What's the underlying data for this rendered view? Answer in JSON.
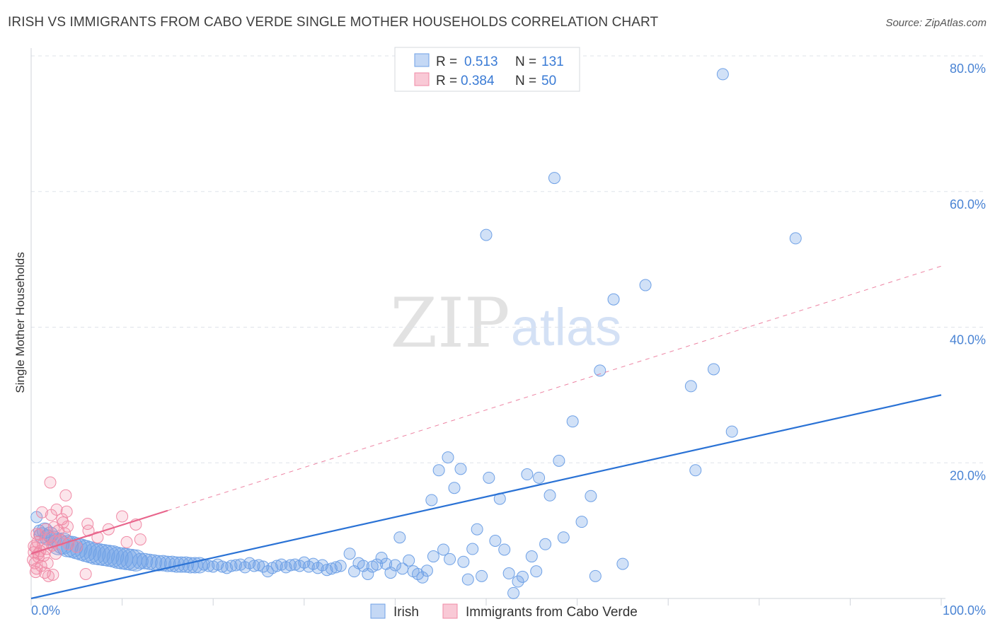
{
  "header": {
    "title": "IRISH VS IMMIGRANTS FROM CABO VERDE SINGLE MOTHER HOUSEHOLDS CORRELATION CHART",
    "source": "Source: ZipAtlas.com"
  },
  "watermark": {
    "zip": "ZIP",
    "atlas": "atlas"
  },
  "colors": {
    "irish": "#6fa1e6",
    "irish_line": "#2a72d5",
    "cabo": "#f08aa6",
    "cabo_line": "#e8658c",
    "tick_label": "#4a84d4",
    "grid": "#dfe3ea"
  },
  "chart_data": {
    "type": "scatter",
    "title": "IRISH VS IMMIGRANTS FROM CABO VERDE SINGLE MOTHER HOUSEHOLDS CORRELATION CHART",
    "ylabel": "Single Mother Households",
    "xlabel": "",
    "xlim": [
      0,
      100
    ],
    "ylim": [
      0,
      80
    ],
    "y_ticks": [
      20,
      40,
      60,
      80
    ],
    "y_tick_labels": [
      "20.0%",
      "40.0%",
      "60.0%",
      "80.0%"
    ],
    "x_tick_labels": [
      "0.0%",
      "100.0%"
    ],
    "grid": true,
    "legend_top": [
      {
        "series": "Irish",
        "r_label": "R = ",
        "r_value": "0.513",
        "n_label": "N = ",
        "n_value": "131"
      },
      {
        "series": "Immigrants from Cabo Verde",
        "r_label": "R = ",
        "r_value": "0.384",
        "n_label": "N = ",
        "n_value": "50"
      }
    ],
    "legend_bottom": [
      "Irish",
      "Immigrants from Cabo Verde"
    ],
    "series": [
      {
        "name": "Irish",
        "trend": {
          "x0": 0,
          "y0": 0.0,
          "x1": 100,
          "y1": 30.0,
          "style": "solid"
        },
        "points": [
          [
            0.6,
            12.0,
            1
          ],
          [
            0.9,
            10.0,
            1
          ],
          [
            1.2,
            9.3,
            2
          ],
          [
            1.5,
            10.0,
            2
          ],
          [
            1.8,
            9.0,
            2
          ],
          [
            2.1,
            9.4,
            2
          ],
          [
            2.5,
            8.8,
            2
          ],
          [
            3.0,
            8.0,
            3
          ],
          [
            3.5,
            8.1,
            3
          ],
          [
            4.0,
            7.7,
            3
          ],
          [
            4.5,
            7.6,
            3
          ],
          [
            5.0,
            7.4,
            3
          ],
          [
            5.5,
            7.2,
            3
          ],
          [
            6.0,
            7.0,
            3
          ],
          [
            6.5,
            6.8,
            3
          ],
          [
            7.0,
            6.6,
            3
          ],
          [
            7.5,
            6.5,
            3
          ],
          [
            8.0,
            6.4,
            3
          ],
          [
            8.5,
            6.3,
            3
          ],
          [
            9.0,
            6.2,
            3
          ],
          [
            9.5,
            6.0,
            3
          ],
          [
            10.0,
            5.9,
            3
          ],
          [
            10.5,
            5.8,
            3
          ],
          [
            11.0,
            5.7,
            3
          ],
          [
            11.5,
            5.6,
            3
          ],
          [
            12.0,
            5.5,
            2
          ],
          [
            12.5,
            5.5,
            2
          ],
          [
            13.0,
            5.4,
            2
          ],
          [
            13.5,
            5.3,
            2
          ],
          [
            14.0,
            5.2,
            2
          ],
          [
            14.5,
            5.2,
            2
          ],
          [
            15.0,
            5.1,
            2
          ],
          [
            15.5,
            5.1,
            2
          ],
          [
            16.0,
            5.0,
            2
          ],
          [
            16.5,
            5.0,
            2
          ],
          [
            17.0,
            5.0,
            2
          ],
          [
            17.5,
            4.9,
            2
          ],
          [
            18.0,
            4.9,
            2
          ],
          [
            18.5,
            4.9,
            2
          ],
          [
            19.0,
            5.0,
            1
          ],
          [
            19.5,
            4.8,
            1
          ],
          [
            20.0,
            4.7,
            1
          ],
          [
            20.5,
            5.0,
            1
          ],
          [
            21.0,
            4.7,
            1
          ],
          [
            21.5,
            4.5,
            1
          ],
          [
            22.0,
            4.8,
            1
          ],
          [
            22.5,
            4.9,
            1
          ],
          [
            23.0,
            5.0,
            1
          ],
          [
            23.5,
            4.6,
            1
          ],
          [
            24.0,
            5.2,
            1
          ],
          [
            24.5,
            4.8,
            1
          ],
          [
            25.0,
            4.9,
            1
          ],
          [
            25.5,
            4.7,
            1
          ],
          [
            26.0,
            4.0,
            1
          ],
          [
            26.5,
            4.5,
            1
          ],
          [
            27.0,
            4.8,
            1
          ],
          [
            27.5,
            5.0,
            1
          ],
          [
            28.0,
            4.6,
            1
          ],
          [
            28.5,
            4.9,
            1
          ],
          [
            29.0,
            5.0,
            1
          ],
          [
            29.5,
            4.8,
            1
          ],
          [
            30.0,
            5.3,
            1
          ],
          [
            30.5,
            4.7,
            1
          ],
          [
            31.0,
            5.1,
            1
          ],
          [
            31.5,
            4.5,
            1
          ],
          [
            32.0,
            4.9,
            1
          ],
          [
            32.5,
            4.2,
            1
          ],
          [
            33.0,
            4.4,
            1
          ],
          [
            33.5,
            4.6,
            1
          ],
          [
            34.0,
            4.8,
            1
          ],
          [
            35.0,
            6.6,
            1
          ],
          [
            35.5,
            4.0,
            1
          ],
          [
            36.0,
            5.2,
            1
          ],
          [
            36.5,
            4.8,
            1
          ],
          [
            37.0,
            3.6,
            1
          ],
          [
            37.5,
            4.7,
            1
          ],
          [
            38.0,
            5.0,
            1
          ],
          [
            38.5,
            6.0,
            1
          ],
          [
            39.0,
            5.1,
            1
          ],
          [
            39.5,
            3.8,
            1
          ],
          [
            40.0,
            4.9,
            1
          ],
          [
            40.5,
            9.0,
            1
          ],
          [
            40.8,
            4.4,
            1
          ],
          [
            41.5,
            5.6,
            1
          ],
          [
            42.0,
            4.0,
            1
          ],
          [
            42.5,
            3.6,
            1
          ],
          [
            43.0,
            3.1,
            1
          ],
          [
            43.5,
            4.1,
            1
          ],
          [
            44.0,
            14.5,
            1
          ],
          [
            44.2,
            6.2,
            1
          ],
          [
            44.8,
            18.9,
            1
          ],
          [
            45.3,
            7.2,
            1
          ],
          [
            45.8,
            20.8,
            1
          ],
          [
            46.0,
            5.8,
            1
          ],
          [
            46.5,
            16.3,
            1
          ],
          [
            47.2,
            19.1,
            1
          ],
          [
            47.5,
            5.4,
            1
          ],
          [
            48.0,
            2.8,
            1
          ],
          [
            48.5,
            7.3,
            1
          ],
          [
            49.0,
            10.2,
            1
          ],
          [
            49.5,
            3.3,
            1
          ],
          [
            50.0,
            53.6,
            1
          ],
          [
            50.3,
            17.8,
            1
          ],
          [
            51.0,
            8.5,
            1
          ],
          [
            51.5,
            14.7,
            1
          ],
          [
            52.0,
            7.2,
            1
          ],
          [
            52.5,
            3.7,
            1
          ],
          [
            53.0,
            0.8,
            1
          ],
          [
            53.5,
            2.5,
            1
          ],
          [
            54.0,
            3.2,
            1
          ],
          [
            54.5,
            18.3,
            1
          ],
          [
            55.0,
            6.2,
            1
          ],
          [
            55.5,
            4.0,
            1
          ],
          [
            55.8,
            17.8,
            1
          ],
          [
            56.5,
            8.0,
            1
          ],
          [
            57.0,
            15.2,
            1
          ],
          [
            57.5,
            62.0,
            1
          ],
          [
            58.0,
            20.3,
            1
          ],
          [
            58.5,
            9.0,
            1
          ],
          [
            59.5,
            26.1,
            1
          ],
          [
            60.5,
            11.3,
            1
          ],
          [
            61.5,
            15.1,
            1
          ],
          [
            62.0,
            3.3,
            1
          ],
          [
            62.5,
            33.6,
            1
          ],
          [
            64.0,
            44.1,
            1
          ],
          [
            65.0,
            5.1,
            1
          ],
          [
            67.5,
            46.2,
            1
          ],
          [
            72.5,
            31.3,
            1
          ],
          [
            73.0,
            18.9,
            1
          ],
          [
            75.0,
            33.8,
            1
          ],
          [
            76.0,
            77.3,
            1
          ],
          [
            77.0,
            24.6,
            1
          ],
          [
            84.0,
            53.1,
            1
          ]
        ]
      },
      {
        "name": "Immigrants from Cabo Verde",
        "trend": {
          "x0": 0,
          "y0": 6.6,
          "x1": 100,
          "y1": 49.0,
          "solid_until_x": 15,
          "style": "solid-then-dashed"
        },
        "points": [
          [
            0.3,
            6.8
          ],
          [
            0.4,
            5.2
          ],
          [
            0.5,
            7.5
          ],
          [
            0.6,
            4.4
          ],
          [
            0.7,
            8.3
          ],
          [
            0.8,
            6.1
          ],
          [
            0.9,
            9.4
          ],
          [
            1.0,
            7.0
          ],
          [
            1.1,
            4.8
          ],
          [
            1.2,
            12.7
          ],
          [
            1.3,
            8.0
          ],
          [
            1.4,
            6.3
          ],
          [
            1.5,
            3.8
          ],
          [
            1.6,
            10.2
          ],
          [
            1.7,
            7.3
          ],
          [
            1.8,
            5.2
          ],
          [
            1.9,
            3.3
          ],
          [
            2.0,
            9.0
          ],
          [
            2.1,
            17.1
          ],
          [
            2.2,
            12.3
          ],
          [
            2.3,
            7.8
          ],
          [
            2.4,
            3.5
          ],
          [
            2.5,
            10.5
          ],
          [
            2.6,
            8.4
          ],
          [
            2.7,
            6.6
          ],
          [
            2.8,
            13.1
          ],
          [
            3.0,
            10.0
          ],
          [
            3.2,
            8.6
          ],
          [
            3.4,
            11.7
          ],
          [
            3.5,
            11.2
          ],
          [
            3.7,
            9.6
          ],
          [
            3.8,
            15.2
          ],
          [
            3.9,
            12.8
          ],
          [
            4.0,
            10.6
          ],
          [
            4.1,
            8.0
          ],
          [
            5.0,
            7.6
          ],
          [
            6.0,
            3.6
          ],
          [
            6.2,
            11.0
          ],
          [
            6.3,
            10.0
          ],
          [
            7.3,
            9.0
          ],
          [
            8.5,
            10.2
          ],
          [
            10.0,
            12.1
          ],
          [
            10.5,
            8.3
          ],
          [
            11.5,
            10.9
          ],
          [
            12.0,
            8.7
          ],
          [
            0.2,
            5.7
          ],
          [
            0.3,
            7.7
          ],
          [
            0.5,
            3.9
          ],
          [
            0.6,
            9.5
          ],
          [
            0.8,
            6.6
          ]
        ]
      }
    ]
  }
}
